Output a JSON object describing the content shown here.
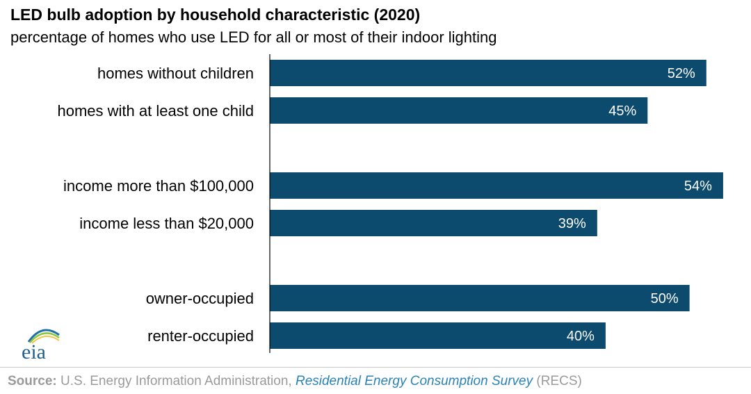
{
  "chart_data": {
    "type": "bar",
    "orientation": "horizontal",
    "title": "LED bulb adoption by household characteristic (2020)",
    "subtitle": "percentage of homes who use LED for all or most of their indoor lighting",
    "categories": [
      "homes without children",
      "homes with at least one child",
      "income more than $100,000",
      "income less than $20,000",
      "owner-occupied",
      "renter-occupied"
    ],
    "values": [
      52,
      45,
      54,
      39,
      50,
      40
    ],
    "value_labels": [
      "52%",
      "45%",
      "54%",
      "39%",
      "50%",
      "40%"
    ],
    "groups": [
      [
        "homes without children",
        "homes with at least one child"
      ],
      [
        "income more than $100,000",
        "income less than $20,000"
      ],
      [
        "owner-occupied",
        "renter-occupied"
      ]
    ],
    "xlim": [
      0,
      55
    ],
    "grid": false,
    "bar_color": "#0c4a6e"
  },
  "logo": {
    "text": "eia"
  },
  "footer": {
    "source_label": "Source:",
    "source_text": "U.S. Energy Information Administration,",
    "survey_name": "Residential Energy Consumption Survey",
    "survey_abbr": "(RECS)"
  },
  "colors": {
    "bar": "#0c4a6e",
    "source_gray": "#9a9a9a",
    "link_blue": "#2b82b4",
    "logo_blue": "#1f6fa8",
    "logo_green": "#8cc63f",
    "logo_yellow": "#f6c343"
  }
}
